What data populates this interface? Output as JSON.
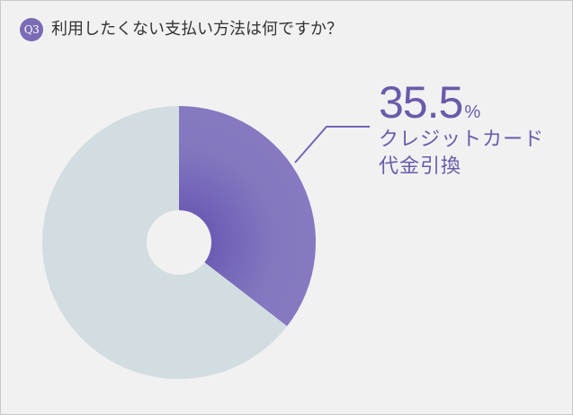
{
  "question": {
    "badge": "Q3",
    "text": "利用したくない支払い方法は何ですか？"
  },
  "chart_data": {
    "type": "pie",
    "donut": true,
    "slices": [
      {
        "value": 35.5,
        "color": "#8378bf"
      },
      {
        "value": 64.5,
        "color": "#d2dde1"
      }
    ],
    "annotation": {
      "value": "35.5",
      "unit": "%",
      "label_lines": [
        "クレジットカード",
        "代金引換"
      ]
    }
  },
  "colors": {
    "accent": "#7b6bb6",
    "callout_text": "#6a5aab",
    "leader_line": "#7564b3",
    "background": "#f1f1f1"
  }
}
